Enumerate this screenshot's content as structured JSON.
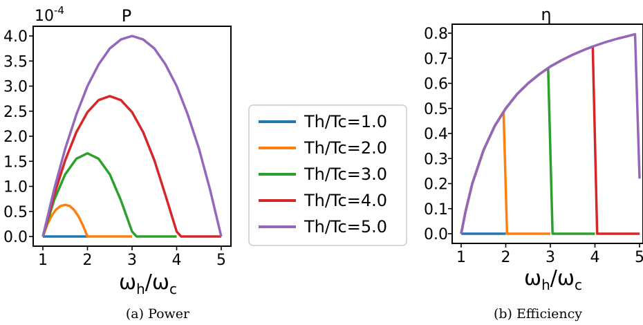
{
  "colors": {
    "Th/Tc=1.0": "#1f77b4",
    "Th/Tc=2.0": "#ff7f0e",
    "Th/Tc=3.0": "#2ca02c",
    "Th/Tc=4.0": "#d62728",
    "Th/Tc=5.0": "#9467bd"
  },
  "legend": {
    "entries": [
      "Th/Tc=1.0",
      "Th/Tc=2.0",
      "Th/Tc=3.0",
      "Th/Tc=4.0",
      "Th/Tc=5.0"
    ]
  },
  "chart_data": [
    {
      "type": "line",
      "caption": "(a) Power",
      "title": "P",
      "xlabel_base": "ω",
      "xlabel_sub1": "h",
      "xlabel_mid": "/ω",
      "xlabel_sub2": "c",
      "ylabel": "",
      "offset_base": "10",
      "offset_exp": "-4",
      "xlim": [
        1,
        5
      ],
      "ylim": [
        0,
        4.0
      ],
      "xticks": [
        1,
        2,
        3,
        4,
        5
      ],
      "xtick_labels": [
        "1",
        "2",
        "3",
        "4",
        "5"
      ],
      "yticks": [
        0.0,
        0.5,
        1.0,
        1.5,
        2.0,
        2.5,
        3.0,
        3.5,
        4.0
      ],
      "ytick_labels": [
        "0.0",
        "0.5",
        "1.0",
        "1.5",
        "2.0",
        "2.5",
        "3.0",
        "3.5",
        "4.0"
      ],
      "grid": false,
      "series": [
        {
          "name": "Th/Tc=1.0",
          "x": [
            1.0,
            2.0
          ],
          "y": [
            0.0,
            0.0
          ]
        },
        {
          "name": "Th/Tc=2.0",
          "x": [
            1.0,
            1.1,
            1.2,
            1.3,
            1.4,
            1.5,
            1.6,
            1.7,
            1.8,
            1.9,
            2.0,
            3.0
          ],
          "y": [
            0.0,
            0.24,
            0.42,
            0.54,
            0.61,
            0.63,
            0.61,
            0.53,
            0.4,
            0.22,
            0.0,
            0.0
          ]
        },
        {
          "name": "Th/Tc=3.0",
          "x": [
            1.0,
            1.25,
            1.5,
            1.75,
            2.0,
            2.25,
            2.5,
            2.75,
            3.0,
            3.1,
            4.0
          ],
          "y": [
            0.0,
            0.72,
            1.24,
            1.55,
            1.66,
            1.55,
            1.24,
            0.72,
            0.1,
            0.0,
            0.0
          ]
        },
        {
          "name": "Th/Tc=4.0",
          "x": [
            1.0,
            1.25,
            1.5,
            1.75,
            2.0,
            2.25,
            2.5,
            2.75,
            3.0,
            3.25,
            3.5,
            3.75,
            4.0,
            4.1,
            5.0
          ],
          "y": [
            0.0,
            0.82,
            1.52,
            2.08,
            2.48,
            2.72,
            2.8,
            2.72,
            2.48,
            2.08,
            1.52,
            0.82,
            0.1,
            0.0,
            0.0
          ]
        },
        {
          "name": "Th/Tc=5.0",
          "x": [
            1.0,
            1.25,
            1.5,
            1.75,
            2.0,
            2.25,
            2.5,
            2.75,
            3.0,
            3.25,
            3.5,
            3.75,
            4.0,
            4.25,
            4.5,
            4.75,
            5.0
          ],
          "y": [
            0.0,
            0.93,
            1.75,
            2.43,
            3.0,
            3.43,
            3.75,
            3.93,
            4.0,
            3.93,
            3.75,
            3.43,
            3.0,
            2.43,
            1.75,
            0.93,
            0.0
          ]
        }
      ]
    },
    {
      "type": "line",
      "caption": "(b) Efficiency",
      "title": "η",
      "xlabel_base": "ω",
      "xlabel_sub1": "h",
      "xlabel_mid": "/ω",
      "xlabel_sub2": "c",
      "ylabel": "",
      "xlim": [
        1,
        5
      ],
      "ylim": [
        0,
        0.8
      ],
      "xticks": [
        1,
        2,
        3,
        4,
        5
      ],
      "xtick_labels": [
        "1",
        "2",
        "3",
        "4",
        "5"
      ],
      "yticks": [
        0.0,
        0.1,
        0.2,
        0.3,
        0.4,
        0.5,
        0.6,
        0.7,
        0.8
      ],
      "ytick_labels": [
        "0.0",
        "0.1",
        "0.2",
        "0.3",
        "0.4",
        "0.5",
        "0.6",
        "0.7",
        "0.8"
      ],
      "grid": false,
      "series": [
        {
          "name": "Th/Tc=1.0",
          "x": [
            1.0,
            2.0
          ],
          "y": [
            0.0,
            0.0
          ]
        },
        {
          "name": "Th/Tc=2.0",
          "x": [
            1.0,
            1.1,
            1.25,
            1.5,
            1.75,
            1.95,
            2.03,
            3.0
          ],
          "y": [
            0.0,
            0.091,
            0.2,
            0.333,
            0.429,
            0.487,
            0.0,
            0.0
          ]
        },
        {
          "name": "Th/Tc=3.0",
          "x": [
            1.0,
            1.1,
            1.25,
            1.5,
            1.75,
            2.0,
            2.25,
            2.5,
            2.75,
            2.95,
            3.05,
            4.0
          ],
          "y": [
            0.0,
            0.091,
            0.2,
            0.333,
            0.429,
            0.5,
            0.556,
            0.6,
            0.636,
            0.661,
            0.0,
            0.0
          ]
        },
        {
          "name": "Th/Tc=4.0",
          "x": [
            1.0,
            1.1,
            1.25,
            1.5,
            1.75,
            2.0,
            2.25,
            2.5,
            2.75,
            3.0,
            3.25,
            3.5,
            3.75,
            3.95,
            4.05,
            5.0
          ],
          "y": [
            0.0,
            0.091,
            0.2,
            0.333,
            0.429,
            0.5,
            0.556,
            0.6,
            0.636,
            0.667,
            0.692,
            0.714,
            0.733,
            0.747,
            0.0,
            0.0
          ]
        },
        {
          "name": "Th/Tc=5.0",
          "x": [
            1.0,
            1.1,
            1.25,
            1.5,
            1.75,
            2.0,
            2.25,
            2.5,
            2.75,
            3.0,
            3.25,
            3.5,
            3.75,
            4.0,
            4.25,
            4.5,
            4.75,
            4.9,
            5.0
          ],
          "y": [
            0.0,
            0.091,
            0.2,
            0.333,
            0.429,
            0.5,
            0.556,
            0.6,
            0.636,
            0.667,
            0.692,
            0.714,
            0.733,
            0.75,
            0.765,
            0.778,
            0.789,
            0.796,
            0.22
          ]
        }
      ]
    }
  ]
}
